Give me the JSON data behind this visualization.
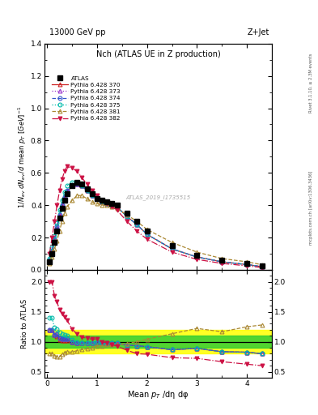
{
  "title_top": "13000 GeV pp",
  "title_right": "Z+Jet",
  "plot_title": "Nch (ATLAS UE in Z production)",
  "xlabel": "Mean $p_{T}$ /dη dφ",
  "ylabel_main": "$1/N_{ev}$ $dN_{ev}/d$ mean $p_{T}$ $[GeV]^{-1}$",
  "ylabel_ratio": "Ratio to ATLAS",
  "right_label_top": "Rivet 3.1.10, ≥ 2.3M events",
  "right_label_bottom": "mcplots.cern.ch [arXiv:1306.3436]",
  "watermark": "ATLAS_2019_I1735515",
  "xlim": [
    -0.05,
    4.5
  ],
  "ylim_main": [
    0,
    1.4
  ],
  "ylim_ratio": [
    0.4,
    2.2
  ],
  "atlas_x": [
    0.05,
    0.1,
    0.15,
    0.2,
    0.25,
    0.3,
    0.35,
    0.4,
    0.5,
    0.6,
    0.7,
    0.8,
    0.9,
    1.0,
    1.1,
    1.2,
    1.3,
    1.4,
    1.6,
    1.8,
    2.0,
    2.5,
    3.0,
    3.5,
    4.0,
    4.3
  ],
  "atlas_y": [
    0.05,
    0.1,
    0.17,
    0.24,
    0.32,
    0.38,
    0.43,
    0.47,
    0.52,
    0.54,
    0.53,
    0.5,
    0.47,
    0.44,
    0.43,
    0.42,
    0.41,
    0.4,
    0.35,
    0.3,
    0.24,
    0.15,
    0.09,
    0.06,
    0.04,
    0.025
  ],
  "p370_x": [
    0.05,
    0.1,
    0.15,
    0.2,
    0.25,
    0.3,
    0.35,
    0.4,
    0.5,
    0.6,
    0.7,
    0.8,
    0.9,
    1.0,
    1.1,
    1.2,
    1.3,
    1.4,
    1.6,
    1.8,
    2.0,
    2.5,
    3.0,
    3.5,
    4.0,
    4.3
  ],
  "p370_y": [
    0.06,
    0.12,
    0.19,
    0.26,
    0.33,
    0.39,
    0.44,
    0.48,
    0.52,
    0.53,
    0.52,
    0.49,
    0.46,
    0.44,
    0.42,
    0.41,
    0.4,
    0.39,
    0.33,
    0.28,
    0.22,
    0.13,
    0.08,
    0.05,
    0.033,
    0.02
  ],
  "p373_x": [
    0.05,
    0.1,
    0.15,
    0.2,
    0.25,
    0.3,
    0.35,
    0.4,
    0.5,
    0.6,
    0.7,
    0.8,
    0.9,
    1.0,
    1.1,
    1.2,
    1.3,
    1.4,
    1.6,
    1.8,
    2.0,
    2.5,
    3.0,
    3.5,
    4.0,
    4.3
  ],
  "p373_y": [
    0.06,
    0.12,
    0.19,
    0.27,
    0.34,
    0.4,
    0.45,
    0.49,
    0.52,
    0.53,
    0.52,
    0.49,
    0.46,
    0.44,
    0.42,
    0.41,
    0.4,
    0.39,
    0.33,
    0.28,
    0.22,
    0.13,
    0.08,
    0.05,
    0.033,
    0.02
  ],
  "p374_x": [
    0.05,
    0.1,
    0.15,
    0.2,
    0.25,
    0.3,
    0.35,
    0.4,
    0.5,
    0.6,
    0.7,
    0.8,
    0.9,
    1.0,
    1.1,
    1.2,
    1.3,
    1.4,
    1.6,
    1.8,
    2.0,
    2.5,
    3.0,
    3.5,
    4.0,
    4.3
  ],
  "p374_y": [
    0.06,
    0.12,
    0.19,
    0.27,
    0.34,
    0.4,
    0.45,
    0.49,
    0.52,
    0.53,
    0.52,
    0.49,
    0.46,
    0.44,
    0.42,
    0.41,
    0.4,
    0.39,
    0.33,
    0.28,
    0.22,
    0.13,
    0.08,
    0.05,
    0.033,
    0.02
  ],
  "p375_x": [
    0.05,
    0.1,
    0.15,
    0.2,
    0.25,
    0.3,
    0.35,
    0.4,
    0.5,
    0.6,
    0.7,
    0.8,
    0.9,
    1.0,
    1.1,
    1.2,
    1.3,
    1.4,
    1.6,
    1.8,
    2.0,
    2.5,
    3.0,
    3.5,
    4.0,
    4.3
  ],
  "p375_y": [
    0.07,
    0.14,
    0.21,
    0.29,
    0.37,
    0.43,
    0.48,
    0.52,
    0.54,
    0.54,
    0.52,
    0.49,
    0.46,
    0.44,
    0.42,
    0.41,
    0.4,
    0.39,
    0.33,
    0.28,
    0.22,
    0.13,
    0.08,
    0.05,
    0.033,
    0.02
  ],
  "p381_x": [
    0.05,
    0.1,
    0.15,
    0.2,
    0.25,
    0.3,
    0.35,
    0.4,
    0.5,
    0.6,
    0.7,
    0.8,
    0.9,
    1.0,
    1.1,
    1.2,
    1.3,
    1.4,
    1.6,
    1.8,
    2.0,
    2.5,
    3.0,
    3.5,
    4.0,
    4.3
  ],
  "p381_y": [
    0.04,
    0.08,
    0.13,
    0.18,
    0.24,
    0.3,
    0.35,
    0.39,
    0.43,
    0.46,
    0.46,
    0.44,
    0.42,
    0.41,
    0.4,
    0.4,
    0.39,
    0.38,
    0.34,
    0.3,
    0.25,
    0.17,
    0.11,
    0.07,
    0.05,
    0.032
  ],
  "p382_x": [
    0.05,
    0.1,
    0.15,
    0.2,
    0.25,
    0.3,
    0.35,
    0.4,
    0.5,
    0.6,
    0.7,
    0.8,
    0.9,
    1.0,
    1.1,
    1.2,
    1.3,
    1.4,
    1.6,
    1.8,
    2.0,
    2.5,
    3.0,
    3.5,
    4.0,
    4.3
  ],
  "p382_y": [
    0.1,
    0.2,
    0.3,
    0.4,
    0.49,
    0.56,
    0.61,
    0.64,
    0.63,
    0.61,
    0.57,
    0.53,
    0.49,
    0.46,
    0.43,
    0.41,
    0.39,
    0.37,
    0.3,
    0.24,
    0.19,
    0.11,
    0.065,
    0.04,
    0.025,
    0.015
  ],
  "green_band_inner": 0.1,
  "yellow_band_outer": 0.2,
  "color_370": "#cc2222",
  "color_373": "#9933cc",
  "color_374": "#3355cc",
  "color_375": "#00bbaa",
  "color_381": "#aa8833",
  "color_382": "#cc1144",
  "color_atlas": "#000000",
  "ms": 3.5,
  "lw": 0.9
}
